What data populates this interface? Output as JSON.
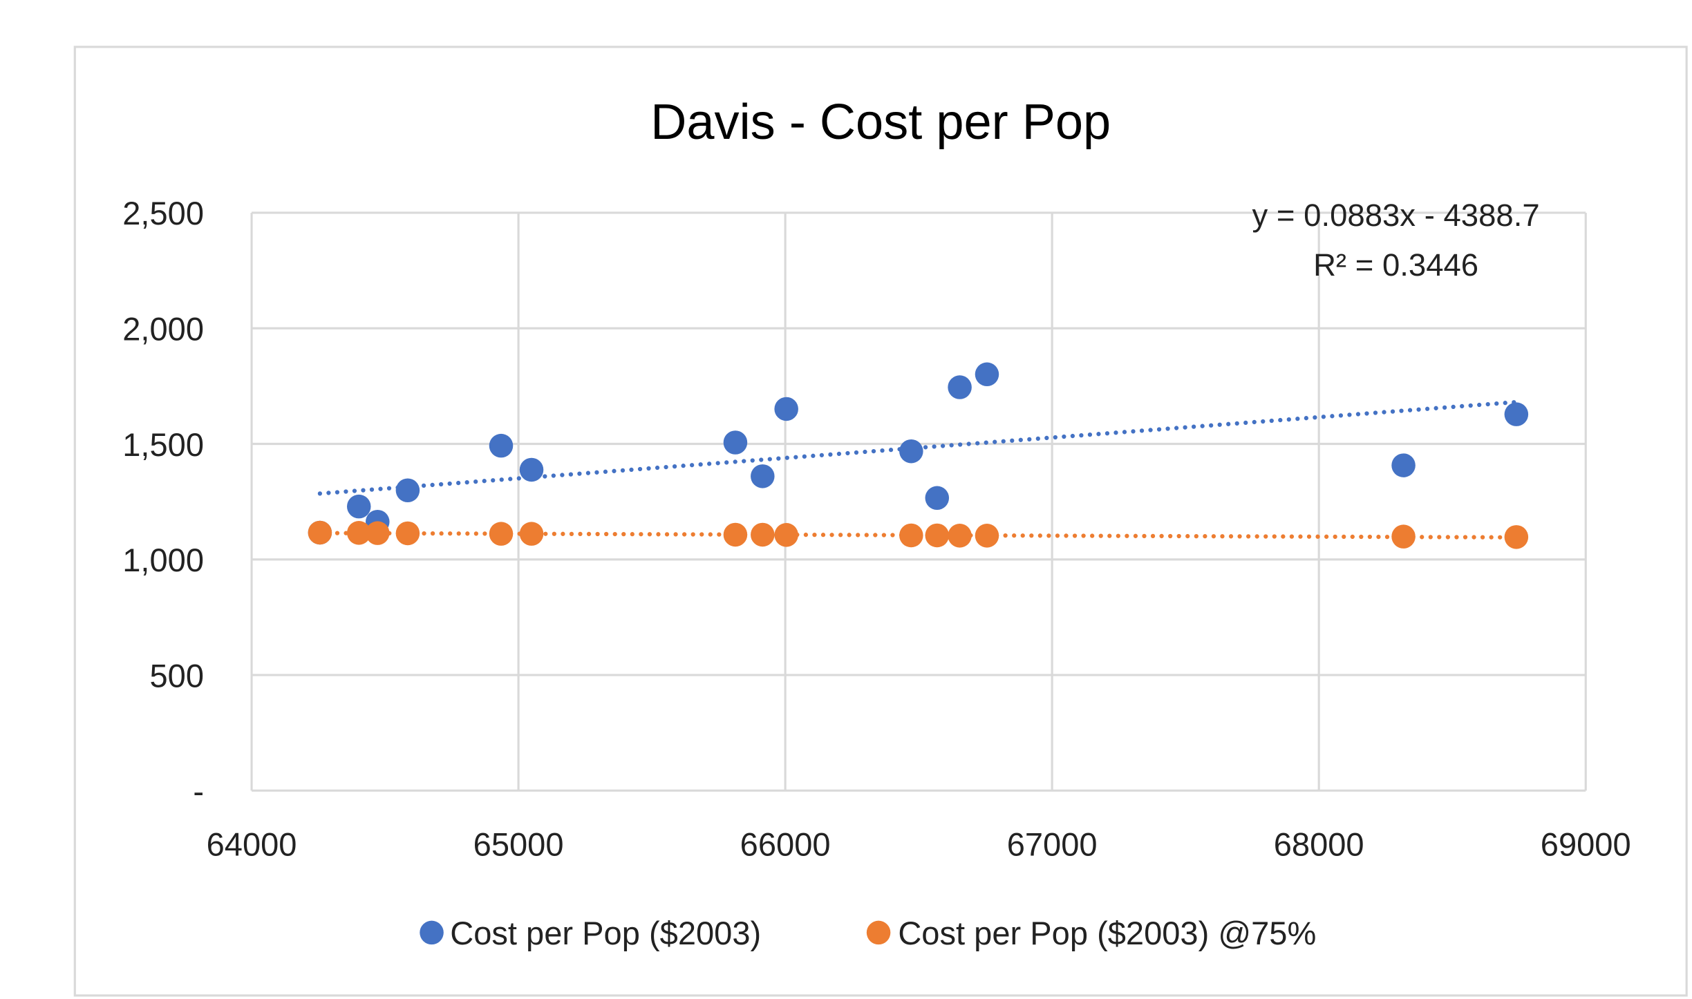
{
  "chart_data": {
    "type": "scatter",
    "title": "Davis - Cost per Pop",
    "xlabel": "",
    "ylabel": "",
    "xlim": [
      64000,
      69000
    ],
    "ylim": [
      0,
      2500
    ],
    "xticks": [
      64000,
      65000,
      66000,
      67000,
      68000,
      69000
    ],
    "xtick_labels": [
      "64000",
      "65000",
      "66000",
      "67000",
      "68000",
      "69000"
    ],
    "yticks": [
      0,
      500,
      1000,
      1500,
      2000,
      2500
    ],
    "ytick_labels": [
      "-",
      "500",
      "1,000",
      "1,500",
      "2,000",
      "2,500"
    ],
    "grid": true,
    "legend_position": "bottom",
    "series": [
      {
        "name": "Cost per Pop ($2003)",
        "color": "#4472C4",
        "x": [
          64256,
          64402,
          64472,
          64585,
          64935,
          65049,
          65813,
          65915,
          66004,
          66472,
          66569,
          66654,
          66756,
          68317,
          68740
        ],
        "y": [
          1116,
          1229,
          1163,
          1299,
          1492,
          1388,
          1506,
          1360,
          1651,
          1468,
          1266,
          1745,
          1801,
          1407,
          1628
        ],
        "trendline": {
          "slope": 0.0883,
          "intercept": -4388.7,
          "equation": "y = 0.0883x - 4388.7",
          "r2": "R² = 0.3446"
        }
      },
      {
        "name": "Cost per Pop ($2003) @75%",
        "color": "#ED7D31",
        "x": [
          64256,
          64402,
          64472,
          64585,
          64935,
          65049,
          65813,
          65915,
          66004,
          66472,
          66569,
          66654,
          66756,
          68317,
          68740
        ],
        "y": [
          1116,
          1115,
          1114,
          1113,
          1111,
          1111,
          1107,
          1107,
          1106,
          1104,
          1104,
          1103,
          1103,
          1099,
          1097
        ],
        "trendline": {
          "type": "linear"
        }
      }
    ]
  }
}
